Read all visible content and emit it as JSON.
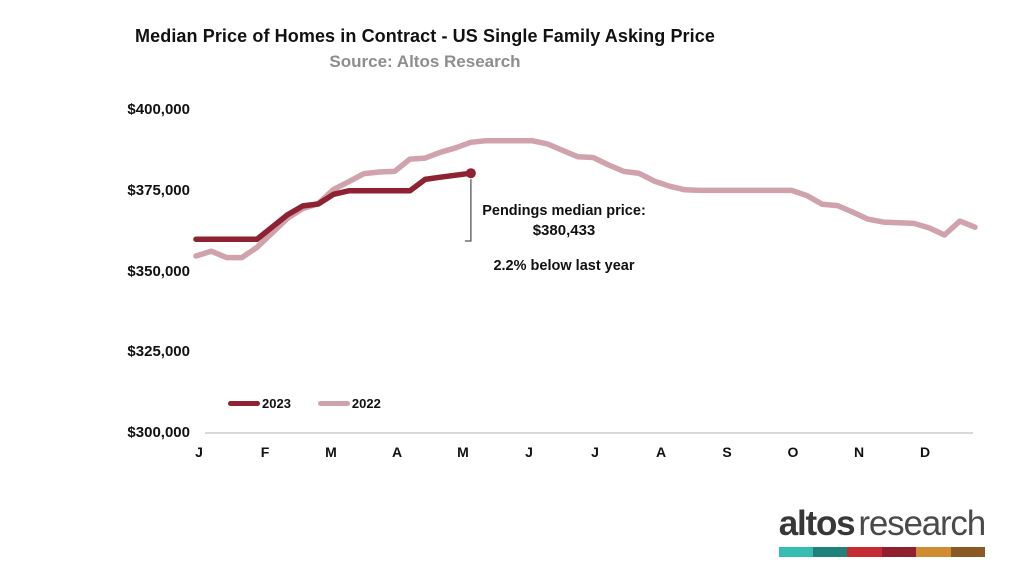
{
  "header": {
    "title": "Median Price of Homes in Contract - US Single Family Asking Price",
    "subtitle": "Source: Altos Research"
  },
  "chart_data": {
    "type": "line",
    "title": "Median Price of Homes in Contract - US Single Family Asking Price",
    "subtitle": "Source: Altos Research",
    "x_unit": "weekly data points, January through December",
    "x_axis": {
      "months": [
        "J",
        "F",
        "M",
        "A",
        "M",
        "J",
        "J",
        "A",
        "S",
        "O",
        "N",
        "D"
      ]
    },
    "y_axis": {
      "tick_labels": [
        "$400,000",
        "$375,000",
        "$350,000",
        "$325,000",
        "$300,000"
      ],
      "tick_values": [
        400000,
        375000,
        350000,
        325000,
        300000
      ],
      "ylim": [
        300000,
        400000
      ]
    },
    "grid": "off",
    "legend_position": "bottom-left",
    "series": [
      {
        "name": "2022",
        "color": "#d0a3ac",
        "values": [
          354800,
          356300,
          354300,
          354300,
          357500,
          362000,
          366500,
          369500,
          371000,
          375400,
          377800,
          380300,
          380800,
          381000,
          384800,
          385100,
          386900,
          388300,
          390000,
          390500,
          390500,
          390500,
          390500,
          389500,
          387500,
          385500,
          385300,
          383000,
          381000,
          380400,
          378000,
          376400,
          375300,
          375100,
          375100,
          375100,
          375100,
          375100,
          375100,
          375100,
          373500,
          370800,
          370400,
          368400,
          366200,
          365300,
          365100,
          364900,
          363500,
          361300,
          365600,
          363700
        ]
      },
      {
        "name": "2023",
        "color": "#8e2132",
        "values": [
          360000,
          360000,
          360000,
          360000,
          360000,
          363800,
          367600,
          370300,
          370900,
          373900,
          375000,
          375000,
          375000,
          375000,
          375000,
          378500,
          379200,
          379800,
          380433
        ]
      }
    ],
    "annotation": {
      "line1": "Pendings median price:",
      "line2": "$380,433",
      "line3": "2.2% below last year",
      "points_to": {
        "series": "2023",
        "value": 380433
      }
    }
  },
  "legend": {
    "items": [
      {
        "label": "2023",
        "color": "#8e2132"
      },
      {
        "label": "2022",
        "color": "#d0a3ac"
      }
    ]
  },
  "logo": {
    "word1": "altos",
    "word2": "research",
    "bar_colors": [
      "#35bdb2",
      "#1f837c",
      "#c52b33",
      "#8f212e",
      "#cf8c33",
      "#8a5a25"
    ]
  }
}
